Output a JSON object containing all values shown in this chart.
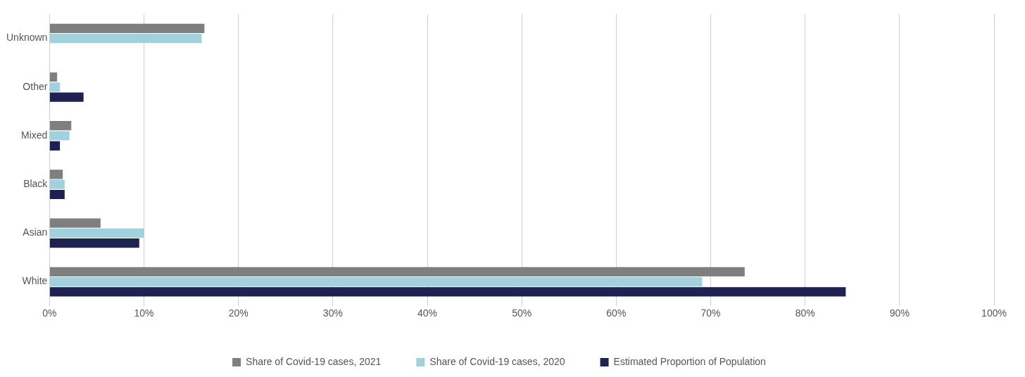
{
  "chart_data": {
    "type": "bar",
    "orientation": "horizontal",
    "categories": [
      "Unknown",
      "Other",
      "Mixed",
      "Black",
      "Asian",
      "White"
    ],
    "series": [
      {
        "name": "Share of Covid-19 cases, 2021",
        "color": "#7f7f80",
        "values": [
          16.4,
          0.8,
          2.3,
          1.4,
          5.4,
          73.6
        ]
      },
      {
        "name": "Share of Covid-19 cases, 2020",
        "color": "#a0d1dc",
        "values": [
          16.1,
          1.1,
          2.1,
          1.6,
          10.0,
          69.1
        ]
      },
      {
        "name": "Estimated Proportion of Population",
        "color": "#1f2251",
        "values": [
          null,
          3.6,
          1.1,
          1.6,
          9.5,
          84.3
        ]
      }
    ],
    "xlim": [
      0,
      100
    ],
    "xticks": [
      {
        "value": 0,
        "label": "0%"
      },
      {
        "value": 10,
        "label": "10%"
      },
      {
        "value": 20,
        "label": "20%"
      },
      {
        "value": 30,
        "label": "30%"
      },
      {
        "value": 40,
        "label": "40%"
      },
      {
        "value": 50,
        "label": "50%"
      },
      {
        "value": 60,
        "label": "60%"
      },
      {
        "value": 70,
        "label": "70%"
      },
      {
        "value": 80,
        "label": "80%"
      },
      {
        "value": 90,
        "label": "90%"
      },
      {
        "value": 100,
        "label": "100%"
      }
    ],
    "grid": "x",
    "legend": "bottom"
  }
}
